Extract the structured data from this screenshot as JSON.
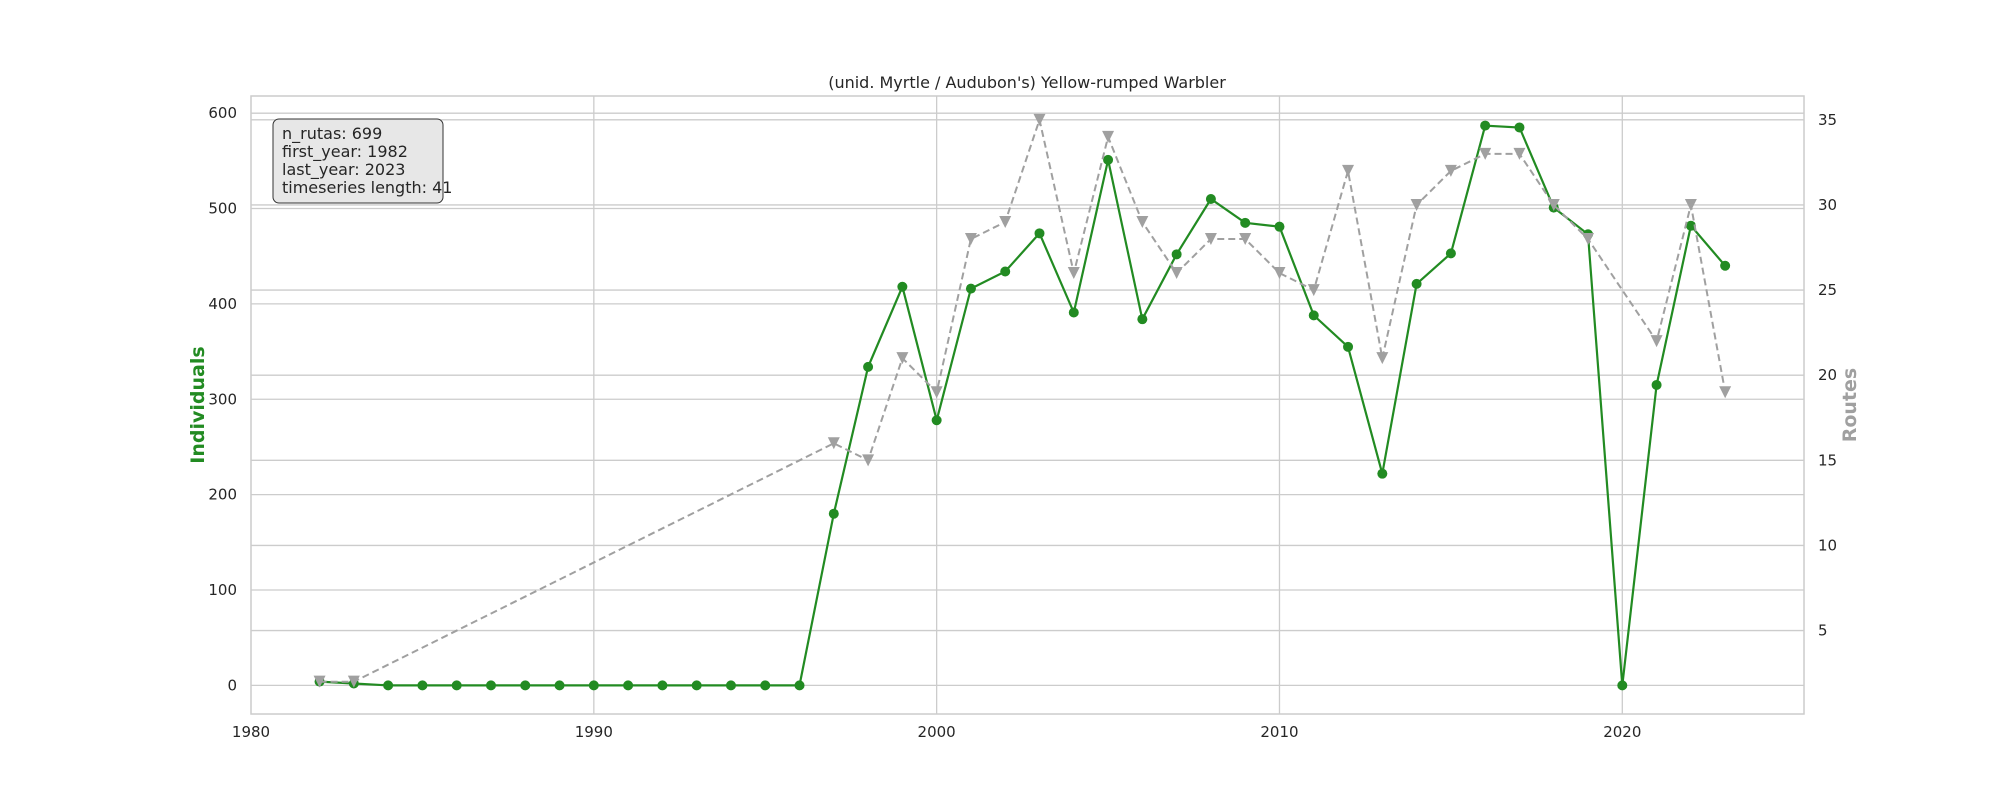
{
  "chart_data": {
    "type": "line",
    "title": "(unid. Myrtle / Audubon's) Yellow-rumped Warbler",
    "ylabel_left": "Individuals",
    "ylabel_right": "Routes",
    "xlim": [
      1980,
      2025.3
    ],
    "ylim_left": [
      -30,
      618
    ],
    "ylim_right": [
      0.1,
      36.4
    ],
    "xticks": [
      1980,
      1990,
      2000,
      2010,
      2020
    ],
    "yticks_left": [
      0,
      100,
      200,
      300,
      400,
      500,
      600
    ],
    "yticks_right": [
      5,
      10,
      15,
      20,
      25,
      30,
      35
    ],
    "grid": true,
    "info_box": {
      "position": "top-left",
      "lines": [
        "n_rutas: 699",
        "first_year: 1982",
        "last_year: 2023",
        "timeseries length: 41"
      ]
    },
    "series": [
      {
        "name": "Individuals",
        "axis": "left",
        "color": "#228b22",
        "style": "solid",
        "marker": "circle",
        "x": [
          1982,
          1983,
          1984,
          1985,
          1986,
          1987,
          1988,
          1989,
          1990,
          1991,
          1992,
          1993,
          1994,
          1995,
          1996,
          1997,
          1998,
          1999,
          2000,
          2001,
          2002,
          2003,
          2004,
          2005,
          2006,
          2007,
          2008,
          2009,
          2010,
          2011,
          2012,
          2013,
          2014,
          2015,
          2016,
          2017,
          2018,
          2019,
          2020,
          2021,
          2022,
          2023
        ],
        "values": [
          4,
          2,
          0,
          0,
          0,
          0,
          0,
          0,
          0,
          0,
          0,
          0,
          0,
          0,
          0,
          180,
          334,
          418,
          278,
          416,
          434,
          474,
          391,
          551,
          384,
          452,
          510,
          485,
          481,
          388,
          355,
          222,
          421,
          453,
          587,
          585,
          501,
          473,
          0,
          315,
          482,
          440
        ]
      },
      {
        "name": "Routes",
        "axis": "right",
        "color": "#a0a0a0",
        "style": "dashed",
        "marker": "triangle-down",
        "x": [
          1982,
          1983,
          1997,
          1998,
          1999,
          2000,
          2001,
          2002,
          2003,
          2004,
          2005,
          2006,
          2007,
          2008,
          2009,
          2010,
          2011,
          2012,
          2013,
          2014,
          2015,
          2016,
          2017,
          2018,
          2019,
          2021,
          2022,
          2023
        ],
        "values": [
          2,
          2,
          16,
          15,
          21,
          19,
          28,
          29,
          35,
          26,
          34,
          29,
          26,
          28,
          28,
          26,
          25,
          32,
          21,
          30,
          32,
          33,
          33,
          30,
          28,
          22,
          30,
          19
        ]
      }
    ]
  }
}
